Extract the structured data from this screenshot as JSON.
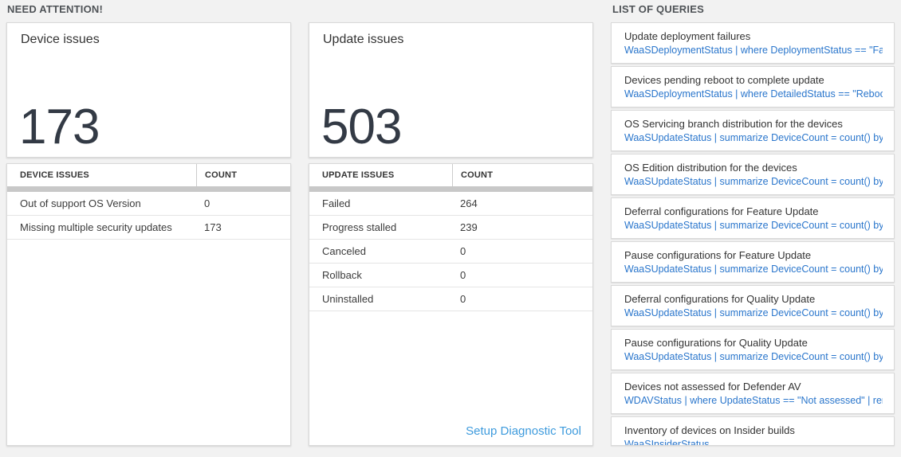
{
  "colors": {
    "page_background": "#f2f2f2",
    "panel_border": "#d9d9d9",
    "big_number": "#333a45",
    "thick_bar": "#c8c8c8",
    "query_text_blue": "#2a76cc",
    "setup_link_blue": "#3e9bdd",
    "section_label": "#4f5357"
  },
  "need_attention": {
    "header": "NEED ATTENTION!",
    "device_card": {
      "title": "Device issues",
      "count": "173"
    },
    "device_table": {
      "headers": [
        "DEVICE ISSUES",
        "COUNT"
      ],
      "rows": [
        {
          "label": "Out of support OS Version",
          "count": "0"
        },
        {
          "label": "Missing multiple security updates",
          "count": "173"
        }
      ]
    },
    "update_card": {
      "title": "Update issues",
      "count": "503"
    },
    "update_table": {
      "headers": [
        "UPDATE ISSUES",
        "COUNT"
      ],
      "rows": [
        {
          "label": "Failed",
          "count": "264"
        },
        {
          "label": "Progress stalled",
          "count": "239"
        },
        {
          "label": "Canceled",
          "count": "0"
        },
        {
          "label": "Rollback",
          "count": "0"
        },
        {
          "label": "Uninstalled",
          "count": "0"
        }
      ]
    },
    "setup_link": "Setup Diagnostic Tool"
  },
  "queries": {
    "header": "LIST OF QUERIES",
    "items": [
      {
        "title": "Update deployment failures",
        "query": "WaaSDeploymentStatus | where DeploymentStatus == \"Failed\" |..."
      },
      {
        "title": "Devices pending reboot to complete update",
        "query": "WaaSDeploymentStatus | where DetailedStatus == \"Reboot pend..."
      },
      {
        "title": "OS Servicing branch distribution for the devices",
        "query": "WaaSUpdateStatus | summarize DeviceCount = count() by OSSer..."
      },
      {
        "title": "OS Edition distribution for the devices",
        "query": "WaaSUpdateStatus | summarize DeviceCount = count() by OSEdit..."
      },
      {
        "title": "Deferral configurations for Feature Update",
        "query": "WaaSUpdateStatus | summarize DeviceCount = count() by Featur..."
      },
      {
        "title": "Pause configurations for Feature Update",
        "query": "WaaSUpdateStatus | summarize DeviceCount = count() by Featur..."
      },
      {
        "title": "Deferral configurations for Quality Update",
        "query": "WaaSUpdateStatus | summarize DeviceCount = count() by Qualit..."
      },
      {
        "title": "Pause configurations for Quality Update",
        "query": "WaaSUpdateStatus | summarize DeviceCount = count() by Qualit..."
      },
      {
        "title": "Devices not assessed for Defender AV",
        "query": "WDAVStatus | where UpdateStatus == \"Not assessed\" | render ta..."
      },
      {
        "title": "Inventory of devices on Insider builds",
        "query": "WaaSInsiderStatus"
      }
    ]
  }
}
